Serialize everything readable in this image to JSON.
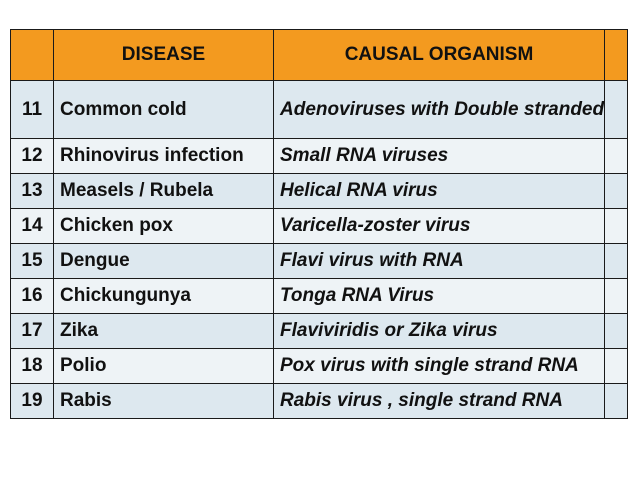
{
  "table": {
    "headers": {
      "disease": "DISEASE",
      "organism": "CAUSAL ORGANISM"
    },
    "rows": [
      {
        "num": "11",
        "disease": "Common cold",
        "organism": "Adenoviruses with Double stranded DNA"
      },
      {
        "num": "12",
        "disease": "Rhinovirus infection",
        "organism": "Small RNA viruses"
      },
      {
        "num": "13",
        "disease": "Measels / Rubela",
        "organism": "Helical RNA virus"
      },
      {
        "num": "14",
        "disease": "Chicken pox",
        "organism": "Varicella-zoster virus"
      },
      {
        "num": "15",
        "disease": "Dengue",
        "organism": "Flavi virus with RNA"
      },
      {
        "num": "16",
        "disease": "Chickungunya",
        "organism": "Tonga RNA Virus"
      },
      {
        "num": "17",
        "disease": "Zika",
        "organism": "Flaviviridis or Zika virus"
      },
      {
        "num": "18",
        "disease": "Polio",
        "organism": "Pox virus with single strand RNA"
      },
      {
        "num": "19",
        "disease": "Rabis",
        "organism": "Rabis virus , single strand RNA"
      }
    ]
  },
  "colors": {
    "header_bg": "#f39a1f",
    "row_bg": "#dde8ef",
    "row_alt_bg": "#eef3f6"
  }
}
